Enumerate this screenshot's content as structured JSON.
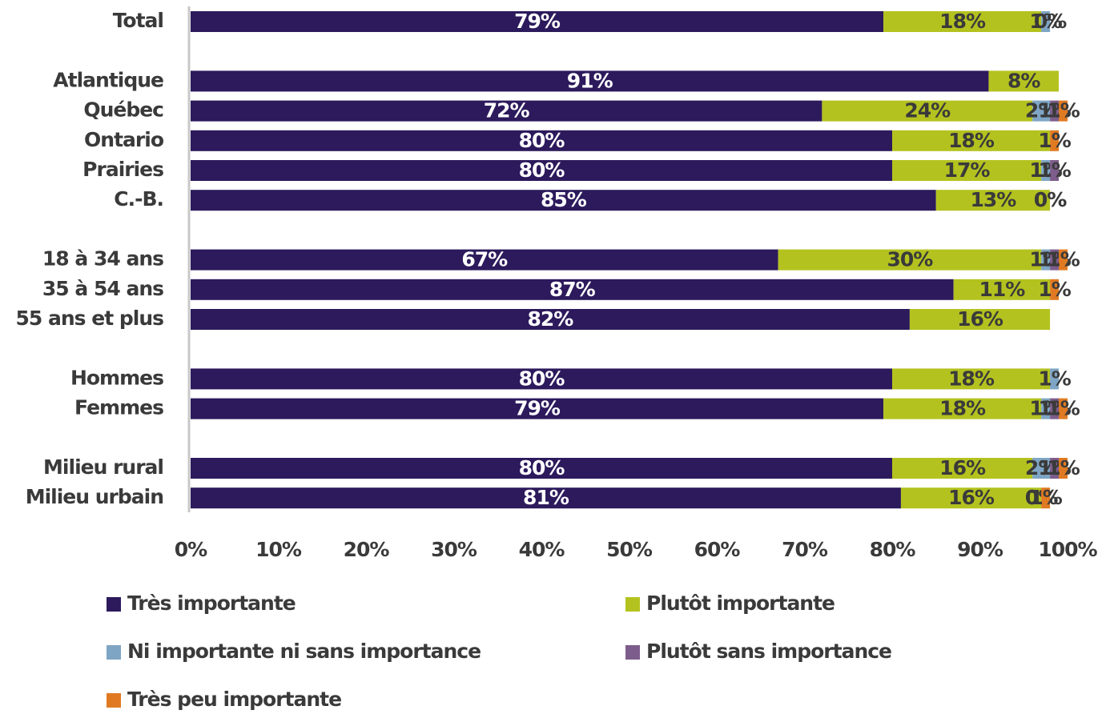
{
  "chart_data": {
    "type": "stacked-bar-horizontal",
    "categories": [
      "Total",
      null,
      "Atlantique",
      "Québec",
      "Ontario",
      "Prairies",
      "C.-B.",
      null,
      "18 à 34 ans",
      "35 à 54 ans",
      "55 ans et plus",
      null,
      "Hommes",
      "Femmes",
      null,
      "Milieu rural",
      "Milieu urbain"
    ],
    "series": [
      {
        "name": "Très importante",
        "color": "#2c1a5c",
        "values": [
          79,
          null,
          91,
          72,
          80,
          80,
          85,
          null,
          67,
          87,
          82,
          null,
          80,
          79,
          null,
          80,
          81
        ],
        "value_labels": [
          "79%",
          null,
          "91%",
          "72%",
          "80%",
          "80%",
          "85%",
          null,
          "67%",
          "87%",
          "82%",
          null,
          "80%",
          "79%",
          null,
          "80%",
          "81%"
        ]
      },
      {
        "name": "Plutôt importante",
        "color": "#b4c21f",
        "values": [
          18,
          null,
          8,
          24,
          18,
          17,
          13,
          null,
          30,
          11,
          16,
          null,
          18,
          18,
          null,
          16,
          16
        ],
        "value_labels": [
          "18%",
          null,
          "8%",
          "24%",
          "18%",
          "17%",
          "13%",
          null,
          "30%",
          "11%",
          "16%",
          null,
          "18%",
          "18%",
          null,
          "16%",
          "16%"
        ]
      },
      {
        "name": "Ni importante ni sans importance",
        "color": "#7ea5c4",
        "values": [
          1,
          null,
          null,
          2,
          null,
          1,
          0,
          null,
          1,
          null,
          null,
          null,
          1,
          1,
          null,
          2,
          0
        ],
        "value_labels": [
          "1%",
          null,
          null,
          "2%",
          null,
          "1%",
          "0%",
          null,
          "1%",
          null,
          null,
          null,
          "1%",
          "1%",
          null,
          "2%",
          "0%"
        ]
      },
      {
        "name": "Plutôt sans importance",
        "color": "#7d5d8b",
        "values": [
          0,
          null,
          null,
          1,
          null,
          1,
          0,
          null,
          1,
          null,
          null,
          null,
          null,
          1,
          null,
          1,
          0
        ],
        "value_labels": [
          "0%",
          null,
          null,
          "1%",
          null,
          "1%",
          "0%",
          null,
          "1%",
          null,
          null,
          null,
          null,
          "1%",
          null,
          "1%",
          "0%"
        ]
      },
      {
        "name": "Très peu importante",
        "color": "#e07a22",
        "values": [
          null,
          null,
          null,
          1,
          1,
          null,
          null,
          null,
          1,
          1,
          null,
          null,
          null,
          1,
          null,
          1,
          1
        ],
        "value_labels": [
          null,
          null,
          null,
          "1%",
          "1%",
          null,
          null,
          null,
          "1%",
          "1%",
          null,
          null,
          null,
          "1%",
          null,
          "1%",
          "1%"
        ]
      }
    ],
    "xlim": [
      0,
      100
    ],
    "xticks": [
      {
        "value": 0,
        "label": "0%"
      },
      {
        "value": 10,
        "label": "10%"
      },
      {
        "value": 20,
        "label": "20%"
      },
      {
        "value": 30,
        "label": "30%"
      },
      {
        "value": 40,
        "label": "40%"
      },
      {
        "value": 50,
        "label": "50%"
      },
      {
        "value": 60,
        "label": "60%"
      },
      {
        "value": 70,
        "label": "70%"
      },
      {
        "value": 80,
        "label": "80%"
      },
      {
        "value": 90,
        "label": "90%"
      },
      {
        "value": 100,
        "label": "100%"
      }
    ],
    "legend": "bottom"
  }
}
